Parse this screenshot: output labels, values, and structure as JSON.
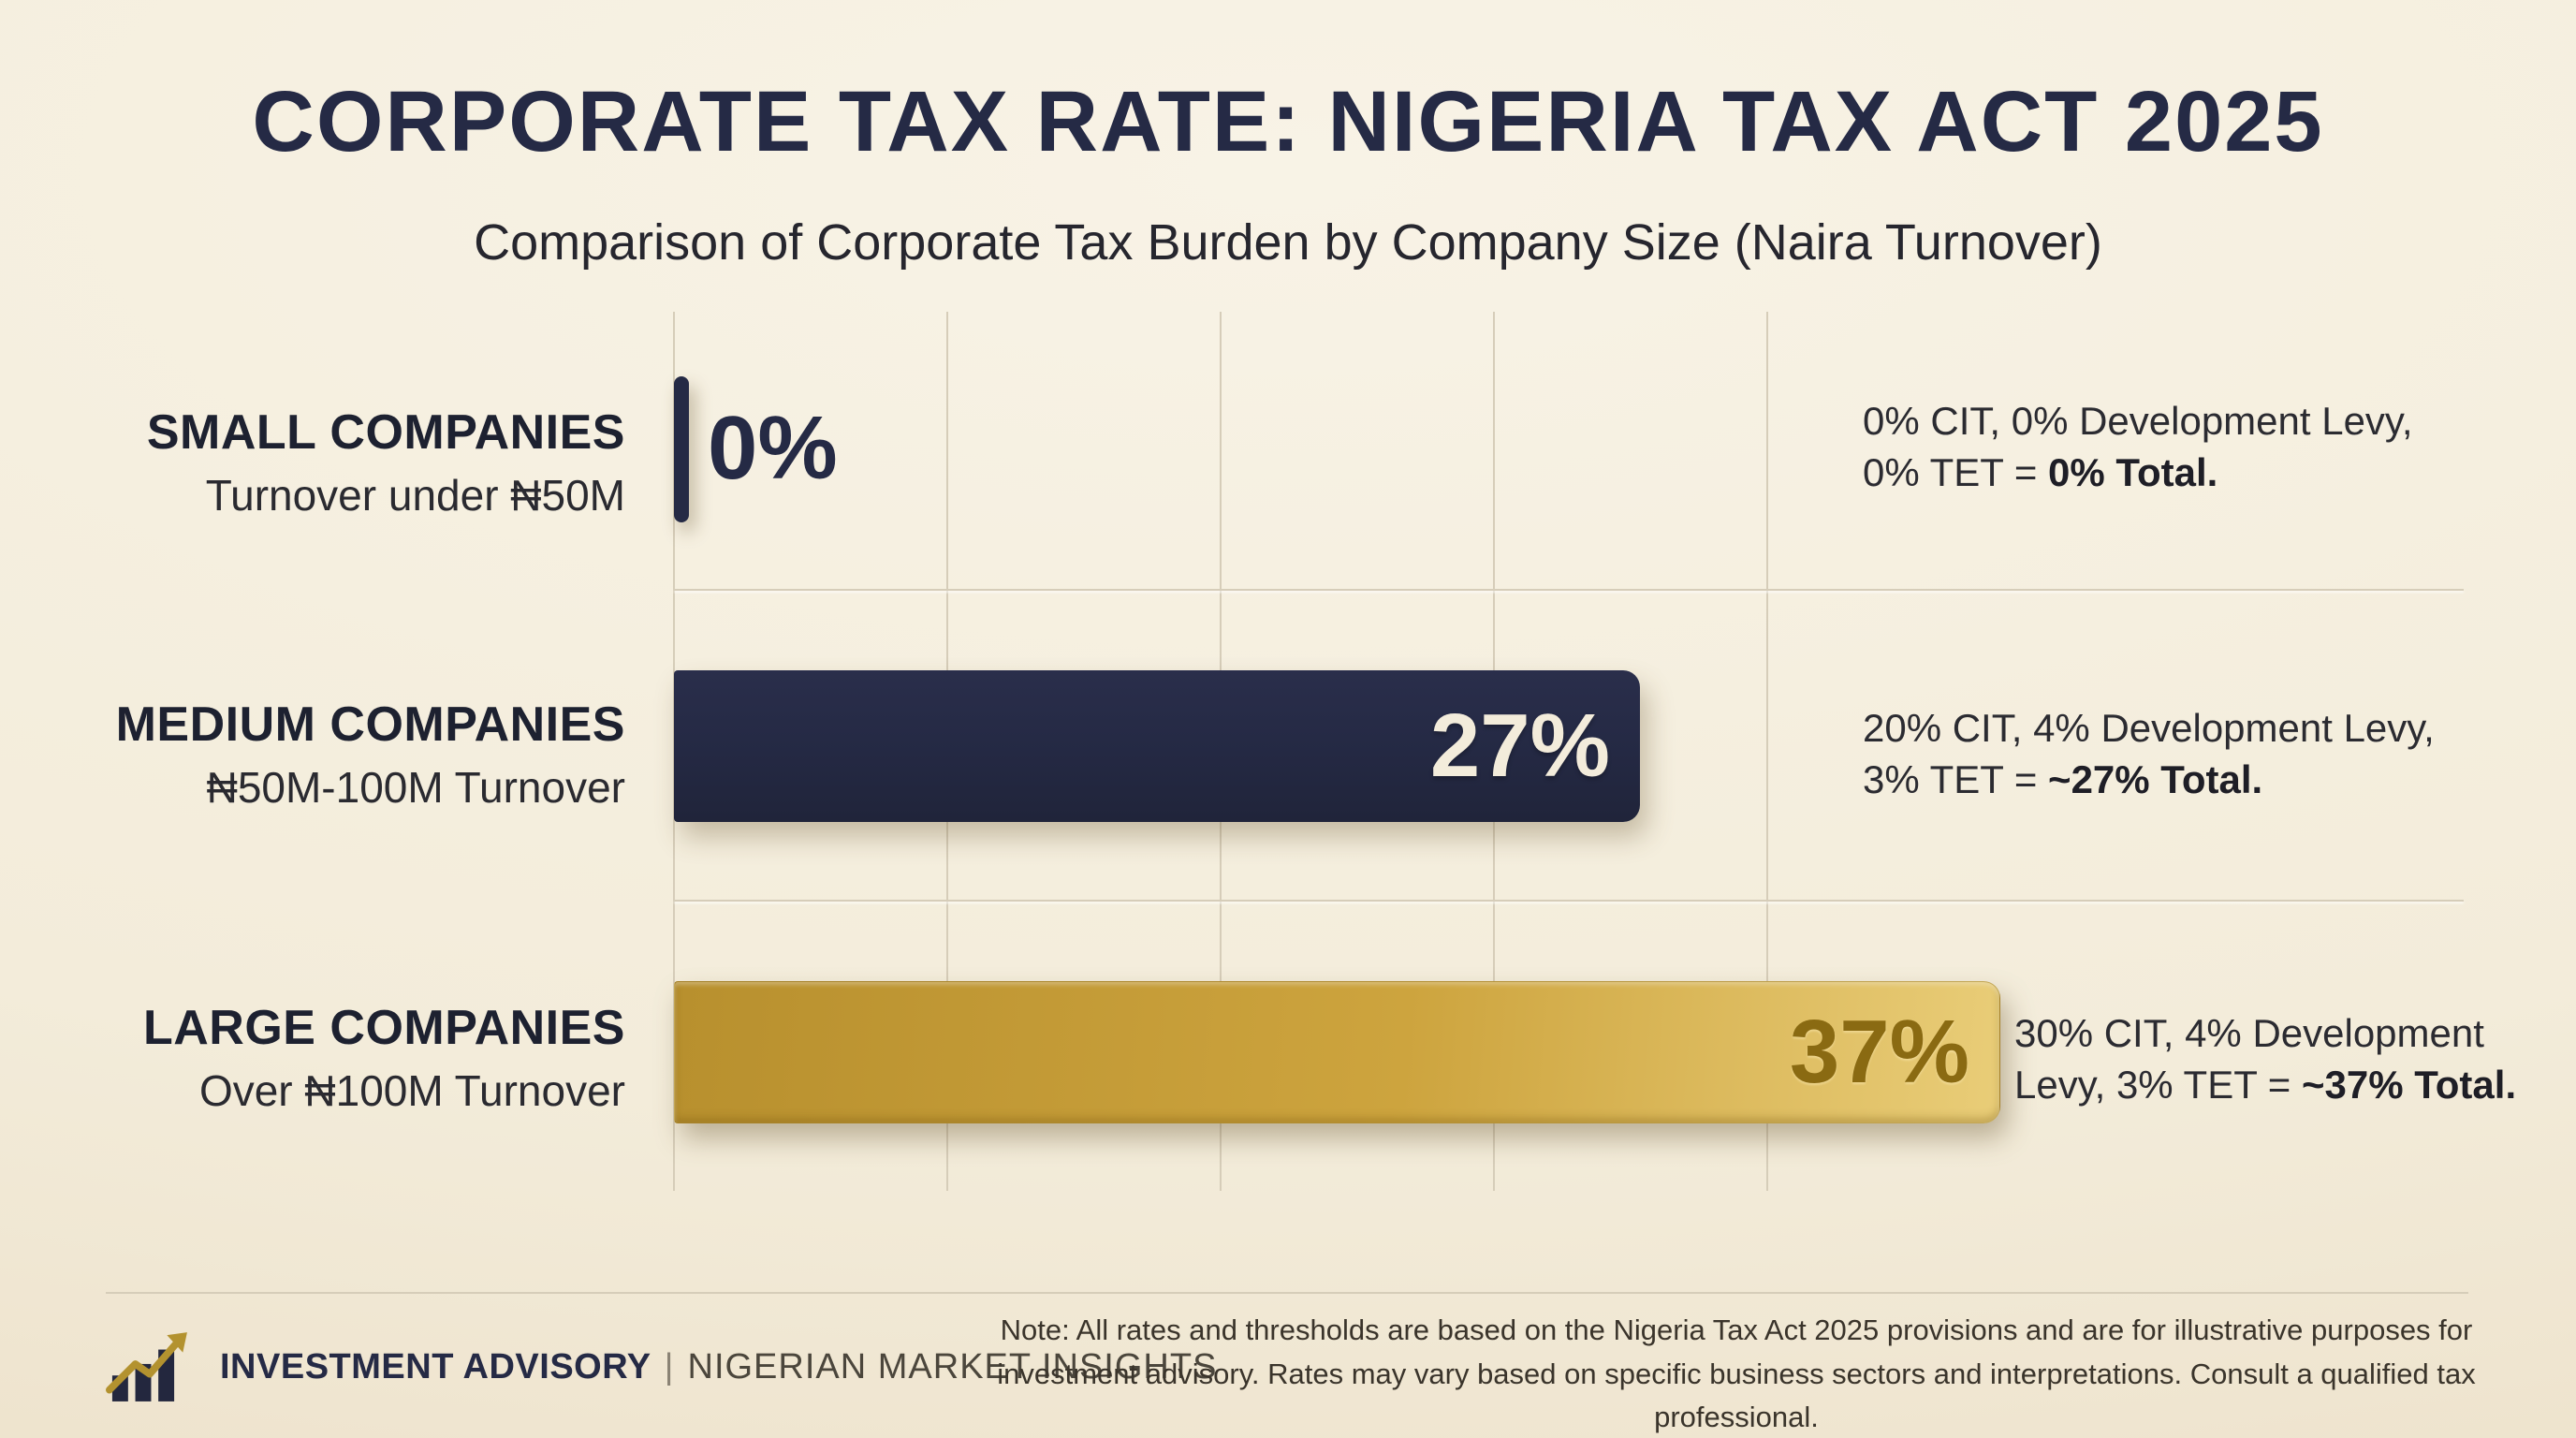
{
  "colors": {
    "navy": "#252a45",
    "cream_text": "#f3ecdb",
    "gold_dark": "#b8902e",
    "gold_mid": "#cda43e",
    "gold_light": "#e9cd78",
    "gold_text": "#8a6a12",
    "bg_center": "#f8f3e6",
    "bg_mid": "#f3ecda",
    "bg_edge": "#eadcc3",
    "grid": "#d6cdb9",
    "text_dark": "#26262e",
    "note_text": "#3a342b",
    "brand_gray": "#4b463c"
  },
  "header": {
    "title": "CORPORATE TAX RATE: NIGERIA TAX ACT 2025",
    "subtitle": "Comparison of Corporate Tax Burden by Company Size (Naira Turnover)"
  },
  "chart_data": {
    "type": "bar",
    "orientation": "horizontal",
    "title": "Corporate tax burden by company size (Nigeria Tax Act 2025)",
    "categories": [
      "SMALL COMPANIES",
      "MEDIUM COMPANIES",
      "LARGE COMPANIES"
    ],
    "category_sublabels": [
      "Turnover under ₦50M",
      "₦50M-100M Turnover",
      "Over ₦100M Turnover"
    ],
    "values": [
      0,
      27,
      37
    ],
    "value_labels": [
      "0%",
      "27%",
      "37%"
    ],
    "unit": "%",
    "xlim": [
      0,
      50
    ],
    "grid": "vertical-gridlines, no tick labels",
    "legend": "none",
    "bar_colors": [
      "navy",
      "navy",
      "gold-gradient"
    ],
    "annotations": [
      {
        "line1": "0% CIT, 0% Development Levy,",
        "line2_prefix": "0% TET = ",
        "line2_bold": "0% Total."
      },
      {
        "line1": "20% CIT, 4% Development Levy,",
        "line2_prefix": "3% TET = ",
        "line2_bold": "~27% Total."
      },
      {
        "line1": "30% CIT, 4% Development",
        "line2_prefix": "Levy, 3% TET = ",
        "line2_bold": "~37% Total."
      }
    ]
  },
  "footer": {
    "brand_bold": "INVESTMENT ADVISORY",
    "brand_separator": "|",
    "brand_rest": "NIGERIAN MARKET INSIGHTS",
    "note_line1": "Note: All rates and thresholds are based on the Nigeria Tax Act 2025 provisions and are for illustrative purposes for",
    "note_line2": "investment advisory. Rates may vary based on specific business sectors and interpretations. Consult a qualified tax professional."
  }
}
